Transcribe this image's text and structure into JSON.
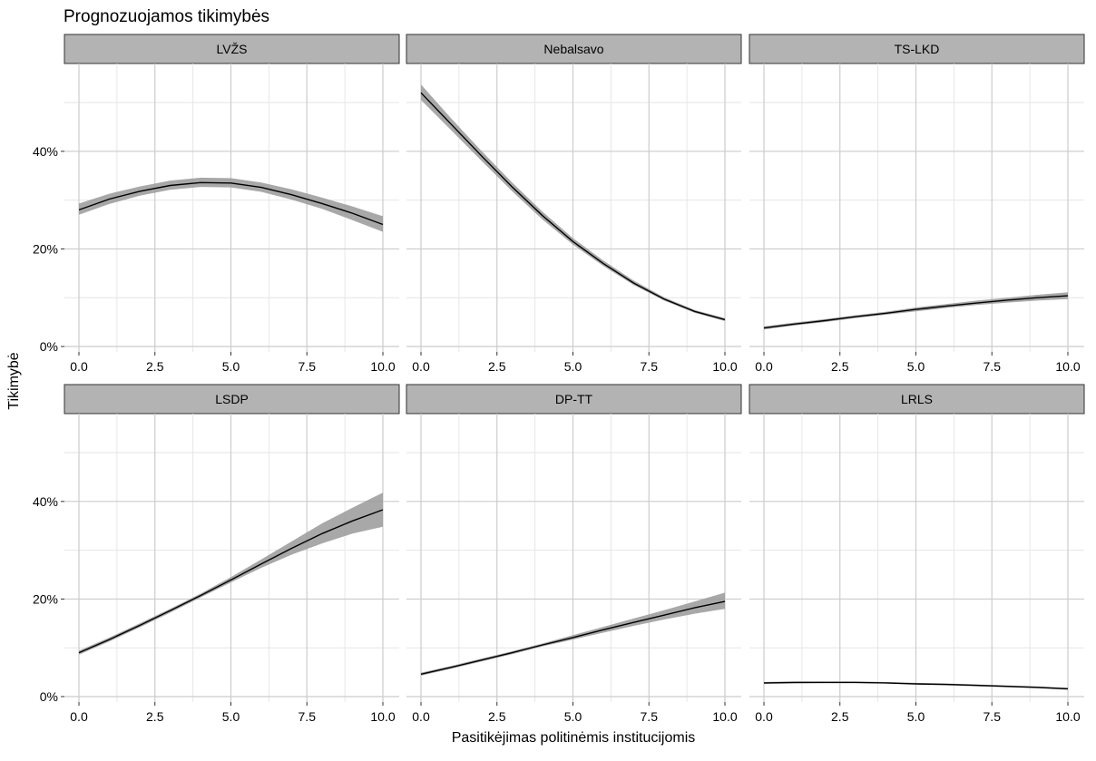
{
  "chart_data": {
    "type": "line",
    "title": "Prognozuojamos tikimybės",
    "xlabel": "Pasitikėjimas politinėmis institucijomis",
    "ylabel": "Tikimybė",
    "xlim": [
      0,
      10
    ],
    "ylim": [
      0,
      0.58
    ],
    "x_ticks": [
      0,
      2.5,
      5,
      7.5,
      10
    ],
    "x_tick_labels": [
      "0.0",
      "2.5",
      "5.0",
      "7.5",
      "10.0"
    ],
    "y_ticks": [
      0,
      0.2,
      0.4
    ],
    "y_tick_labels": [
      "0%",
      "20%",
      "40%"
    ],
    "grid": true,
    "x": [
      0,
      1,
      2,
      3,
      4,
      5,
      6,
      7,
      8,
      9,
      10
    ],
    "panels": [
      {
        "name": "LVŽS",
        "fit": [
          0.28,
          0.302,
          0.318,
          0.33,
          0.336,
          0.335,
          0.326,
          0.311,
          0.293,
          0.273,
          0.25
        ],
        "lower": [
          0.27,
          0.292,
          0.309,
          0.321,
          0.327,
          0.326,
          0.317,
          0.301,
          0.282,
          0.259,
          0.235
        ],
        "upper": [
          0.293,
          0.313,
          0.328,
          0.34,
          0.346,
          0.345,
          0.336,
          0.322,
          0.305,
          0.287,
          0.267
        ]
      },
      {
        "name": "Nebalsavo",
        "fit": [
          0.52,
          0.455,
          0.39,
          0.327,
          0.268,
          0.215,
          0.17,
          0.13,
          0.097,
          0.072,
          0.055
        ],
        "lower": [
          0.505,
          0.443,
          0.38,
          0.318,
          0.26,
          0.209,
          0.165,
          0.126,
          0.094,
          0.069,
          0.052
        ],
        "upper": [
          0.537,
          0.467,
          0.4,
          0.336,
          0.276,
          0.222,
          0.176,
          0.135,
          0.101,
          0.075,
          0.058
        ]
      },
      {
        "name": "TS-LKD",
        "fit": [
          0.038,
          0.046,
          0.053,
          0.061,
          0.068,
          0.076,
          0.083,
          0.089,
          0.095,
          0.1,
          0.104
        ],
        "lower": [
          0.035,
          0.043,
          0.05,
          0.058,
          0.065,
          0.072,
          0.079,
          0.085,
          0.09,
          0.094,
          0.097
        ],
        "upper": [
          0.041,
          0.049,
          0.056,
          0.064,
          0.071,
          0.08,
          0.087,
          0.094,
          0.1,
          0.106,
          0.111
        ]
      },
      {
        "name": "LSDP",
        "fit": [
          0.09,
          0.117,
          0.146,
          0.176,
          0.207,
          0.239,
          0.272,
          0.304,
          0.334,
          0.36,
          0.383
        ],
        "lower": [
          0.086,
          0.113,
          0.142,
          0.172,
          0.203,
          0.234,
          0.264,
          0.291,
          0.314,
          0.334,
          0.348
        ],
        "upper": [
          0.094,
          0.121,
          0.15,
          0.18,
          0.211,
          0.245,
          0.281,
          0.318,
          0.355,
          0.387,
          0.418
        ]
      },
      {
        "name": "DP-TT",
        "fit": [
          0.046,
          0.06,
          0.075,
          0.09,
          0.106,
          0.121,
          0.137,
          0.152,
          0.167,
          0.182,
          0.195
        ],
        "lower": [
          0.043,
          0.057,
          0.072,
          0.087,
          0.103,
          0.117,
          0.131,
          0.145,
          0.158,
          0.17,
          0.18
        ],
        "upper": [
          0.049,
          0.063,
          0.078,
          0.093,
          0.109,
          0.126,
          0.143,
          0.16,
          0.177,
          0.195,
          0.213
        ]
      },
      {
        "name": "LRLS",
        "fit": [
          0.028,
          0.029,
          0.029,
          0.029,
          0.028,
          0.026,
          0.025,
          0.023,
          0.021,
          0.019,
          0.016
        ],
        "lower": [
          0.026,
          0.027,
          0.028,
          0.028,
          0.027,
          0.025,
          0.023,
          0.021,
          0.019,
          0.017,
          0.014
        ],
        "upper": [
          0.03,
          0.031,
          0.031,
          0.031,
          0.03,
          0.028,
          0.027,
          0.025,
          0.023,
          0.021,
          0.018
        ]
      }
    ]
  }
}
